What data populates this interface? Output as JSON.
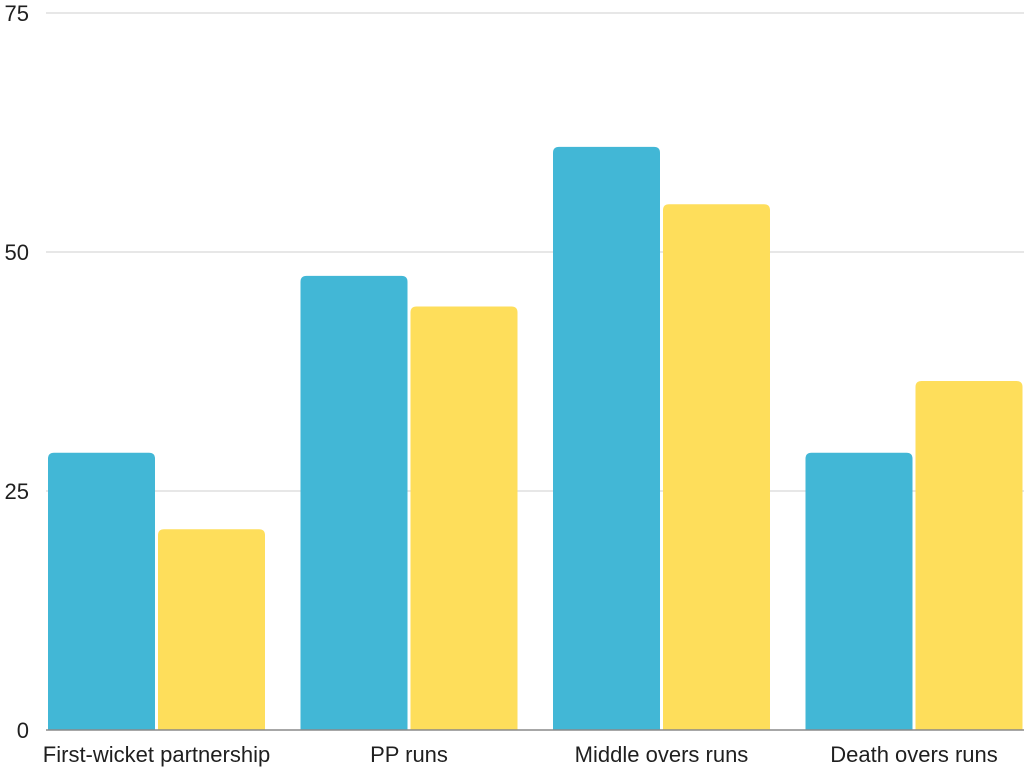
{
  "chart_data": {
    "type": "bar",
    "categories": [
      "First-wicket partnership",
      "PP runs",
      "Middle overs runs",
      "Death overs runs"
    ],
    "series": [
      {
        "values": [
          29,
          47.5,
          61,
          29
        ],
        "color": "#42B7D6"
      },
      {
        "values": [
          21,
          44.3,
          55,
          36.5
        ],
        "color": "#FEDE5B"
      }
    ],
    "ylim": [
      0,
      75
    ],
    "yticks": [
      "0",
      "25",
      "50",
      "75"
    ],
    "grid": true,
    "legend": "none"
  }
}
